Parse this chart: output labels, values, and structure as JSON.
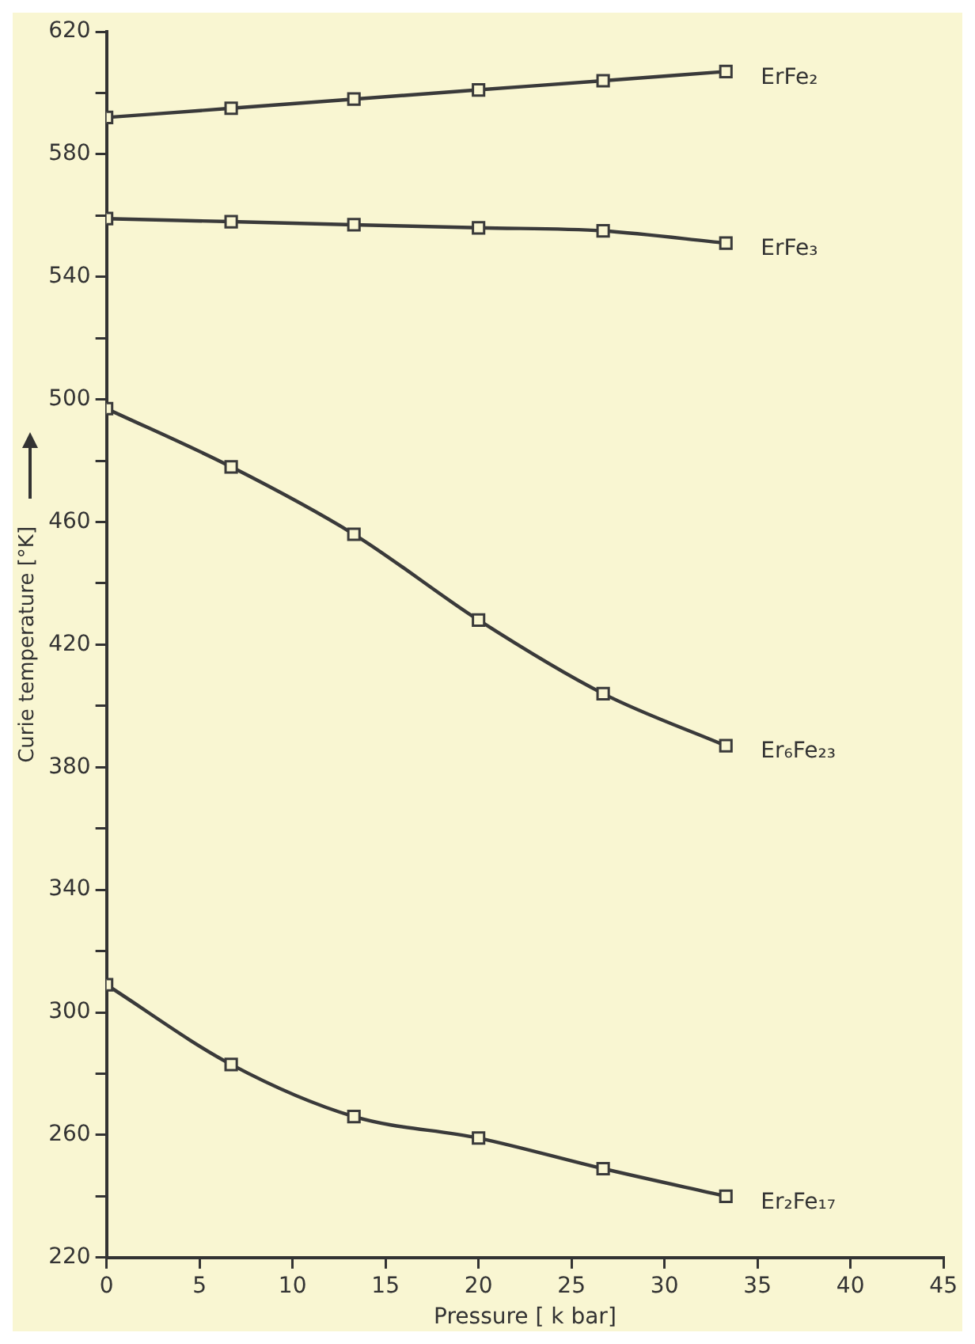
{
  "chart_data": {
    "type": "line",
    "xlabel": "Pressure [ k bar]",
    "ylabel": "Curie temperature [°K]",
    "xlim": [
      0,
      45
    ],
    "xticks": [
      0,
      5,
      10,
      15,
      20,
      25,
      30,
      35,
      40,
      45
    ],
    "ylim": [
      220,
      620
    ],
    "yticks": [
      220,
      {
        "value": 240,
        "label": null
      },
      260,
      {
        "value": 280,
        "label": null
      },
      300,
      {
        "value": 320,
        "label": null
      },
      340,
      {
        "value": 360,
        "label": null
      },
      380,
      {
        "value": 400,
        "label": null
      },
      420,
      {
        "value": 440,
        "label": null
      },
      460,
      {
        "value": 480,
        "label": null
      },
      500,
      {
        "value": 520,
        "label": null
      },
      540,
      {
        "value": 560,
        "label": null
      },
      580,
      {
        "value": 600,
        "label": null
      },
      620
    ],
    "x": [
      0,
      6.7,
      13.3,
      20,
      26.7,
      33.3
    ],
    "series": [
      {
        "name": "ErFe₂",
        "color": "#3a3a3a",
        "values": [
          592,
          595,
          598,
          601,
          604,
          607
        ]
      },
      {
        "name": "ErFe₃",
        "color": "#3a3a3a",
        "values": [
          559,
          558,
          557,
          556,
          555,
          551
        ]
      },
      {
        "name": "Er₆Fe₂₃",
        "color": "#3a3a3a",
        "values": [
          497,
          478,
          456,
          428,
          404,
          387
        ]
      },
      {
        "name": "Er₂Fe₁₇",
        "color": "#3a3a3a",
        "values": [
          309,
          283,
          266,
          259,
          249,
          240
        ]
      }
    ],
    "marker": "square",
    "line_style": "solid",
    "grid": false,
    "legend": false
  }
}
